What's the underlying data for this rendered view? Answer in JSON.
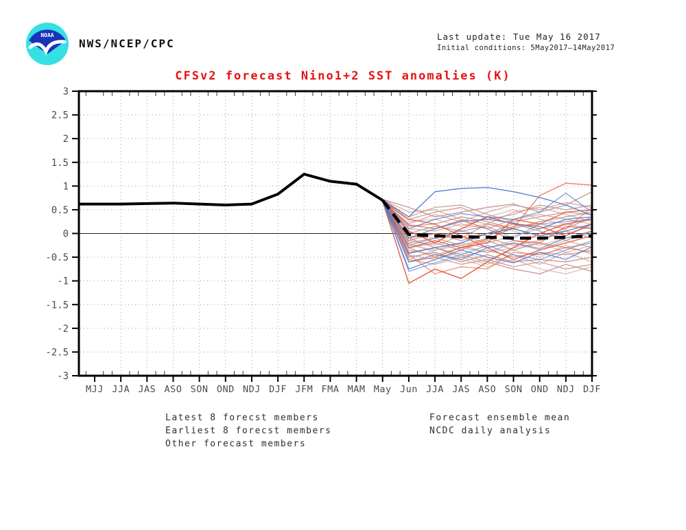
{
  "header": {
    "logo": "noaa-logo",
    "logo_text": "NOAA",
    "agency": "NWS/NCEP/CPC",
    "last_update": "Last update: Tue May 16 2017",
    "initial_conditions": "Initial conditions: 5May2017—14May2017"
  },
  "title": "CFSv2 forecast Nino1+2 SST anomalies (K)",
  "chart_data": {
    "type": "line",
    "title": "CFSv2 forecast Nino1+2 SST anomalies (K)",
    "xlabel": "",
    "ylabel": "",
    "categories": [
      "MJJ",
      "JJA",
      "JAS",
      "ASO",
      "SON",
      "OND",
      "NDJ",
      "DJF",
      "JFM",
      "FMA",
      "MAM",
      "May",
      "Jun",
      "JJA",
      "JAS",
      "ASO",
      "SON",
      "OND",
      "NDJ",
      "DJF"
    ],
    "ylim": [
      -3,
      3
    ],
    "ytick_step": 0.5,
    "yticks": [
      "3",
      "2.5",
      "2",
      "1.5",
      "1",
      "0.5",
      "0",
      "-0.5",
      "-1",
      "-1.5",
      "-2",
      "-2.5",
      "-3"
    ],
    "grid": true,
    "zero_line": true,
    "legend_position": "bottom",
    "axis_text_color": "#4b4b4b",
    "grid_color": "#9a9a9a",
    "forecast_start_index": 11,
    "analysis": {
      "name": "NCDC daily analysis",
      "color": "#000000",
      "start_index": 0,
      "values": [
        0.62,
        0.62,
        0.63,
        0.64,
        0.62,
        0.6,
        0.62,
        0.83,
        1.25,
        1.1,
        1.04,
        0.7
      ]
    },
    "ensemble_mean": {
      "name": "Forecast ensemble mean",
      "color": "#000000",
      "dash": "16 9",
      "start_index": 11,
      "values": [
        0.7,
        -0.02,
        -0.05,
        -0.07,
        -0.08,
        -0.1,
        -0.1,
        -0.08,
        -0.05
      ]
    },
    "ensembles": [
      {
        "name": "Other forecast members",
        "color": "#c9978f",
        "members": [
          [
            0.72,
            0.55,
            0.35,
            0.45,
            0.55,
            0.62,
            0.45,
            0.6,
            0.88
          ],
          [
            0.72,
            0.45,
            0.5,
            0.3,
            0.2,
            0.45,
            0.55,
            0.4,
            0.25
          ],
          [
            0.72,
            0.35,
            0.55,
            0.6,
            0.4,
            0.25,
            0.35,
            0.45,
            0.4
          ],
          [
            0.72,
            0.25,
            0.3,
            0.15,
            0.35,
            0.5,
            0.3,
            0.2,
            0.3
          ],
          [
            0.72,
            0.15,
            0.2,
            0.35,
            0.25,
            0.1,
            0.25,
            0.35,
            0.45
          ],
          [
            0.72,
            0.1,
            0.05,
            0.2,
            0.1,
            0.3,
            0.4,
            0.3,
            0.2
          ],
          [
            0.7,
            0.0,
            0.15,
            0.05,
            -0.05,
            0.15,
            0.2,
            0.1,
            0.35
          ],
          [
            0.7,
            -0.05,
            -0.1,
            0.1,
            0.2,
            0.05,
            -0.1,
            0.0,
            0.15
          ],
          [
            0.7,
            -0.1,
            0.0,
            -0.15,
            0.0,
            0.2,
            0.05,
            -0.15,
            0.05
          ],
          [
            0.7,
            -0.15,
            -0.25,
            -0.05,
            -0.2,
            -0.05,
            0.1,
            0.2,
            0.1
          ],
          [
            0.7,
            -0.2,
            -0.1,
            -0.25,
            -0.1,
            -0.25,
            -0.15,
            0.05,
            -0.1
          ],
          [
            0.7,
            -0.25,
            -0.35,
            -0.2,
            -0.3,
            -0.15,
            -0.25,
            -0.1,
            0.0
          ],
          [
            0.7,
            -0.3,
            -0.2,
            -0.35,
            -0.15,
            -0.35,
            -0.2,
            -0.3,
            -0.2
          ],
          [
            0.7,
            -0.35,
            -0.45,
            -0.3,
            -0.4,
            -0.2,
            -0.35,
            -0.15,
            -0.3
          ],
          [
            0.7,
            -0.4,
            -0.3,
            -0.5,
            -0.35,
            -0.5,
            -0.4,
            -0.45,
            -0.35
          ],
          [
            0.68,
            -0.45,
            -0.55,
            -0.4,
            -0.55,
            -0.35,
            -0.5,
            -0.25,
            -0.45
          ],
          [
            0.68,
            -0.5,
            -0.4,
            -0.6,
            -0.45,
            -0.6,
            -0.55,
            -0.6,
            -0.5
          ],
          [
            0.68,
            -0.55,
            -0.65,
            -0.5,
            -0.65,
            -0.45,
            -0.65,
            -0.4,
            -0.6
          ],
          [
            0.68,
            -0.3,
            -0.5,
            -0.65,
            -0.55,
            -0.7,
            -0.6,
            -0.75,
            -0.65
          ],
          [
            0.68,
            -0.2,
            -0.4,
            -0.55,
            -0.7,
            -0.55,
            -0.75,
            -0.85,
            -0.7
          ],
          [
            0.68,
            -0.1,
            -0.3,
            -0.45,
            -0.6,
            -0.75,
            -0.85,
            -0.65,
            -0.8
          ],
          [
            0.68,
            0.2,
            0.4,
            0.25,
            0.45,
            0.6,
            0.5,
            0.65,
            0.55
          ],
          [
            0.68,
            0.3,
            0.45,
            0.55,
            0.3,
            0.4,
            0.6,
            0.5,
            0.6
          ],
          [
            0.68,
            -0.55,
            -0.35,
            -0.25,
            -0.4,
            -0.3,
            -0.2,
            -0.4,
            -0.25
          ]
        ]
      },
      {
        "name": "Earliest 8 forecst members",
        "color": "#e8512f",
        "members": [
          [
            0.68,
            -1.05,
            -0.75,
            -0.95,
            -0.6,
            -0.3,
            0.0,
            0.2,
            0.3
          ],
          [
            0.68,
            -0.6,
            -0.5,
            -0.3,
            -0.12,
            0.12,
            0.8,
            1.06,
            1.02
          ],
          [
            0.68,
            -0.3,
            -0.15,
            -0.3,
            -0.2,
            0.3,
            0.2,
            0.45,
            0.5
          ],
          [
            0.68,
            -0.15,
            0.0,
            -0.1,
            0.2,
            0.1,
            -0.05,
            0.1,
            0.55
          ],
          [
            0.68,
            0.05,
            -0.2,
            0.1,
            0.35,
            0.2,
            0.15,
            -0.05,
            0.2
          ],
          [
            0.68,
            0.18,
            0.1,
            0.28,
            0.1,
            -0.15,
            -0.2,
            0.15,
            0.1
          ],
          [
            0.68,
            0.3,
            0.2,
            -0.05,
            -0.3,
            -0.55,
            -0.35,
            -0.2,
            -0.05
          ],
          [
            0.68,
            -0.45,
            -0.85,
            -0.7,
            -0.75,
            -0.4,
            -0.45,
            -0.3,
            -0.4
          ]
        ]
      },
      {
        "name": "Latest 8 forecst members",
        "color": "#4f7cd1",
        "members": [
          [
            0.7,
            0.35,
            0.88,
            0.95,
            0.97,
            0.88,
            0.76,
            0.6,
            0.38
          ],
          [
            0.7,
            0.1,
            0.3,
            0.42,
            0.35,
            0.3,
            0.45,
            0.85,
            0.45
          ],
          [
            0.7,
            -0.1,
            0.1,
            0.25,
            0.3,
            0.22,
            0.1,
            0.3,
            0.35
          ],
          [
            0.7,
            -0.25,
            -0.1,
            0.05,
            0.15,
            -0.1,
            0.2,
            0.25,
            0.3
          ],
          [
            0.7,
            -0.42,
            -0.3,
            -0.2,
            0.0,
            0.1,
            -0.05,
            0.05,
            0.2
          ],
          [
            0.7,
            -0.6,
            -0.45,
            -0.55,
            -0.3,
            -0.2,
            -0.32,
            -0.1,
            0.05
          ],
          [
            0.68,
            -0.75,
            -0.55,
            -0.35,
            -0.5,
            -0.62,
            -0.4,
            -0.55,
            -0.28
          ],
          [
            0.68,
            -0.8,
            -0.62,
            -0.45,
            -0.25,
            -0.45,
            -0.55,
            -0.35,
            -0.15
          ]
        ]
      }
    ]
  },
  "legend": {
    "left": [
      {
        "label": "Latest 8 forecst members",
        "color": "#7b9ed9",
        "style": "thin"
      },
      {
        "label": "Earliest 8 forecst members",
        "color": "#ef8872",
        "style": "thin"
      },
      {
        "label": "Other forecast members",
        "color": "#dbb0a8",
        "style": "thin"
      }
    ],
    "right": [
      {
        "label": "Forecast ensemble mean",
        "color": "#000000",
        "style": "dashed-thick"
      },
      {
        "label": "NCDC daily analysis",
        "color": "#000000",
        "style": "solid-thick"
      }
    ]
  }
}
